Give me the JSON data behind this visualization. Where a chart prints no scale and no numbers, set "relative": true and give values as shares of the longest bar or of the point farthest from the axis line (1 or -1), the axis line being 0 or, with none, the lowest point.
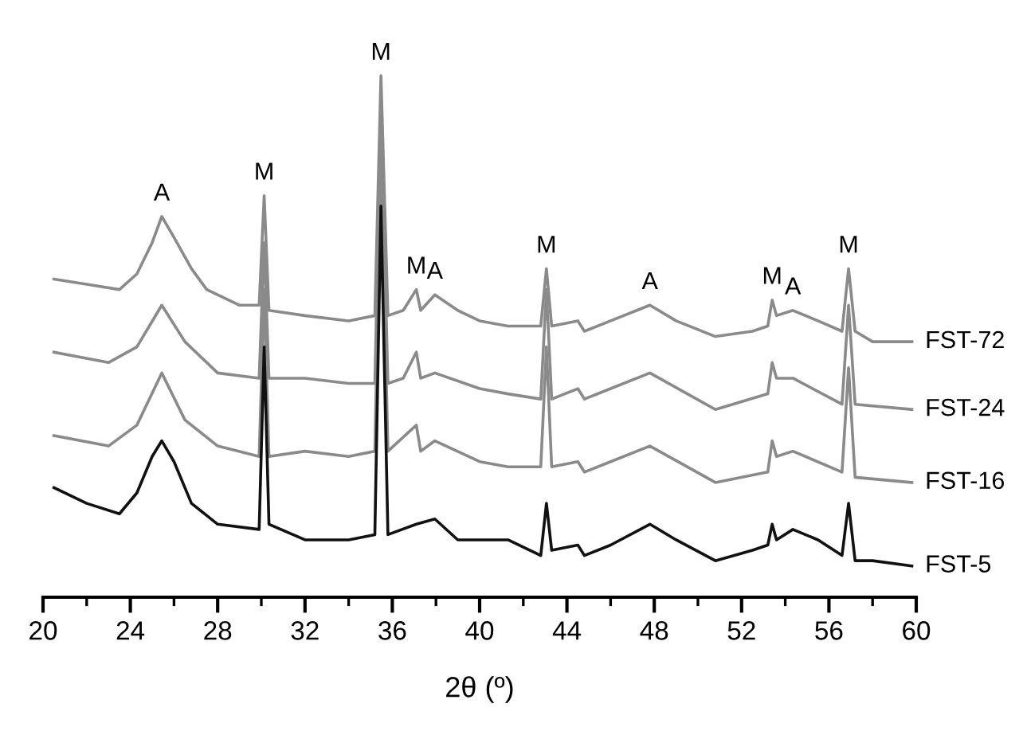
{
  "chart_data": {
    "type": "line",
    "relative": true,
    "xlabel": "2θ (º)",
    "xlim": [
      20,
      60
    ],
    "xticks": [
      20,
      24,
      28,
      32,
      36,
      40,
      44,
      48,
      52,
      56,
      60
    ],
    "tick_labels": "x",
    "grid": false,
    "legend": false,
    "line_style": "solid",
    "marker": "none",
    "series": [
      {
        "name": "FST-72",
        "color": "#8a8a8a",
        "x": [
          20.5,
          22,
          23.5,
          24.3,
          25.0,
          25.44,
          26.0,
          26.8,
          27.5,
          29.0,
          29.9,
          30.13,
          30.35,
          32,
          34,
          35.2,
          35.48,
          35.8,
          36.5,
          37.1,
          37.3,
          37.95,
          39,
          40,
          41.3,
          42.8,
          43.06,
          43.3,
          44.5,
          44.8,
          46,
          47.8,
          49,
          50.8,
          52.5,
          53.2,
          53.4,
          53.6,
          54.35,
          55.5,
          56.6,
          56.9,
          57.2,
          58,
          59.8
        ],
        "values": [
          0.61,
          0.6,
          0.59,
          0.62,
          0.68,
          0.73,
          0.69,
          0.63,
          0.59,
          0.56,
          0.56,
          0.77,
          0.55,
          0.54,
          0.53,
          0.54,
          1.0,
          0.54,
          0.55,
          0.59,
          0.55,
          0.58,
          0.55,
          0.53,
          0.52,
          0.52,
          0.63,
          0.52,
          0.53,
          0.51,
          0.53,
          0.56,
          0.53,
          0.5,
          0.51,
          0.52,
          0.57,
          0.54,
          0.55,
          0.53,
          0.51,
          0.63,
          0.51,
          0.49,
          0.49
        ]
      },
      {
        "name": "FST-24",
        "color": "#8a8a8a",
        "x": [
          20.5,
          23,
          24.3,
          25.44,
          26.5,
          28,
          29.9,
          30.13,
          30.35,
          32,
          34,
          35.2,
          35.48,
          35.8,
          36.5,
          37.1,
          37.3,
          37.95,
          40,
          41.3,
          42.8,
          43.06,
          43.3,
          44.5,
          44.8,
          47.8,
          50.8,
          53.2,
          53.4,
          53.6,
          54.35,
          56.6,
          56.9,
          57.2,
          59.8
        ],
        "values": [
          0.47,
          0.45,
          0.48,
          0.56,
          0.49,
          0.43,
          0.42,
          0.68,
          0.42,
          0.42,
          0.41,
          0.41,
          0.93,
          0.41,
          0.42,
          0.47,
          0.42,
          0.43,
          0.4,
          0.39,
          0.38,
          0.59,
          0.38,
          0.4,
          0.38,
          0.43,
          0.36,
          0.39,
          0.45,
          0.42,
          0.42,
          0.37,
          0.56,
          0.37,
          0.36
        ]
      },
      {
        "name": "FST-16",
        "color": "#8a8a8a",
        "x": [
          20.5,
          23,
          24.3,
          25.44,
          26.5,
          28,
          29.9,
          30.13,
          30.35,
          32,
          34,
          35.2,
          35.48,
          35.8,
          37.1,
          37.3,
          37.95,
          40,
          41.3,
          42.8,
          43.06,
          43.3,
          44.5,
          44.8,
          47.8,
          50.8,
          53.2,
          53.4,
          53.6,
          54.35,
          56.6,
          56.9,
          57.2,
          59.8
        ],
        "values": [
          0.31,
          0.29,
          0.33,
          0.43,
          0.34,
          0.29,
          0.27,
          0.59,
          0.27,
          0.28,
          0.27,
          0.28,
          0.86,
          0.28,
          0.33,
          0.28,
          0.3,
          0.26,
          0.25,
          0.25,
          0.48,
          0.25,
          0.26,
          0.24,
          0.29,
          0.22,
          0.24,
          0.3,
          0.27,
          0.28,
          0.24,
          0.44,
          0.23,
          0.22
        ]
      },
      {
        "name": "FST-5",
        "color": "#111111",
        "x": [
          20.5,
          22,
          23.5,
          24.3,
          25.0,
          25.44,
          26.0,
          26.8,
          28,
          29.9,
          30.13,
          30.35,
          32,
          34,
          35.2,
          35.48,
          35.8,
          37.1,
          37.95,
          39,
          41.3,
          42.8,
          43.06,
          43.3,
          44.5,
          44.8,
          46,
          47.8,
          49,
          50.8,
          52.5,
          53.2,
          53.4,
          53.6,
          54.35,
          55.5,
          56.6,
          56.9,
          57.2,
          58,
          59.8
        ],
        "values": [
          0.21,
          0.18,
          0.16,
          0.2,
          0.27,
          0.3,
          0.26,
          0.18,
          0.14,
          0.13,
          0.48,
          0.14,
          0.11,
          0.11,
          0.12,
          0.75,
          0.12,
          0.14,
          0.15,
          0.11,
          0.11,
          0.08,
          0.18,
          0.09,
          0.1,
          0.08,
          0.1,
          0.14,
          0.11,
          0.07,
          0.09,
          0.1,
          0.14,
          0.11,
          0.13,
          0.11,
          0.08,
          0.18,
          0.07,
          0.07,
          0.06
        ]
      }
    ],
    "annotations": [
      {
        "text": "A",
        "x": 25.44,
        "y": 0.73
      },
      {
        "text": "M",
        "x": 30.13,
        "y": 0.77
      },
      {
        "text": "M",
        "x": 35.48,
        "y": 1.0
      },
      {
        "text": "M",
        "x": 37.1,
        "y": 0.59
      },
      {
        "text": "A",
        "x": 37.95,
        "y": 0.58
      },
      {
        "text": "M",
        "x": 43.06,
        "y": 0.63
      },
      {
        "text": "A",
        "x": 47.8,
        "y": 0.56
      },
      {
        "text": "M",
        "x": 53.4,
        "y": 0.57
      },
      {
        "text": "A",
        "x": 54.35,
        "y": 0.55
      },
      {
        "text": "M",
        "x": 56.9,
        "y": 0.63
      }
    ]
  }
}
